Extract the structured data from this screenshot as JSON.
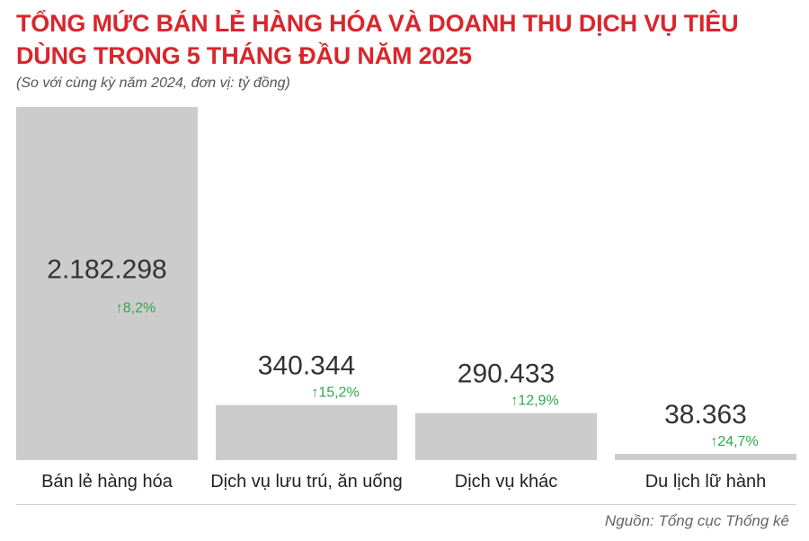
{
  "title": "TỔNG MỨC BÁN LẺ HÀNG HÓA VÀ DOANH THU DỊCH VỤ TIÊU DÙNG TRONG 5 THÁNG ĐẦU NĂM 2025",
  "subtitle": "(So với cùng kỳ năm 2024, đơn vị: tỷ đồng)",
  "source": "Nguồn: Tổng cục Thống kê",
  "colors": {
    "title": "#d9262c",
    "bar": "#cccccc",
    "growth": "#2ea84a",
    "value_text": "#333333"
  },
  "growth_icon": "up-arrow-icon",
  "chart_data": {
    "type": "bar",
    "categories": [
      "Bán lẻ hàng hóa",
      "Dịch vụ lưu trú, ăn uống",
      "Dịch vụ khác",
      "Du lịch lữ hành"
    ],
    "values": [
      2182298,
      340344,
      290433,
      38363
    ],
    "value_labels": [
      "2.182.298",
      "340.344",
      "290.433",
      "38.363"
    ],
    "growth_labels": [
      "8,2%",
      "15,2%",
      "12,9%",
      "24,7%"
    ],
    "ylim": [
      0,
      2182298
    ],
    "grid": false,
    "legend": "none"
  }
}
